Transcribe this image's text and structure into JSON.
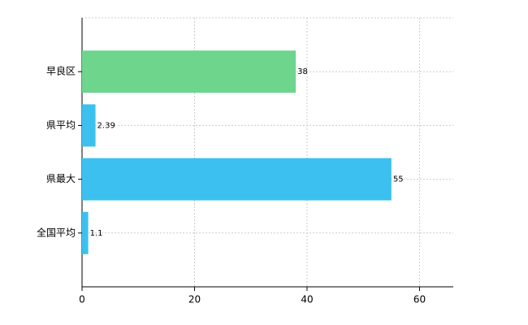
{
  "chart_data": {
    "type": "hbar",
    "categories": [
      "早良区",
      "県平均",
      "県最大",
      "全国平均"
    ],
    "values": [
      38,
      2.39,
      55,
      1.1
    ],
    "colors": [
      "#6dd58c",
      "#3cc0f0",
      "#3cc0f0",
      "#3cc0f0"
    ],
    "xlim": [
      0,
      66
    ],
    "xticks": [
      0,
      20,
      40,
      60
    ],
    "grid": true
  }
}
